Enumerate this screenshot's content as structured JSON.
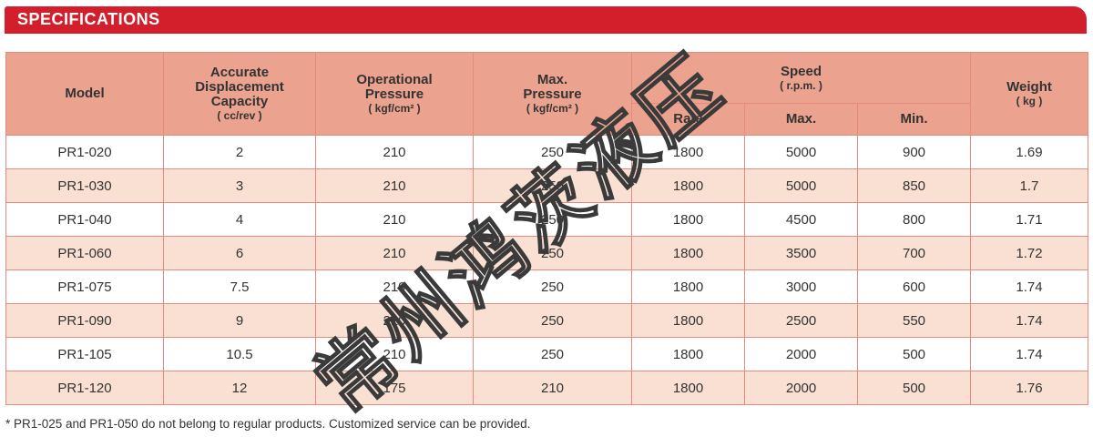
{
  "banner": {
    "title": "SPECIFICATIONS"
  },
  "headers": {
    "model": "Model",
    "capacity": {
      "line1": "Accurate",
      "line2": "Displacement",
      "line3": "Capacity",
      "unit": "( cc/rev )"
    },
    "operational": {
      "line1": "Operational",
      "line2": "Pressure",
      "unit": "( kgf/cm² )"
    },
    "max_pressure": {
      "line1": "Max.",
      "line2": "Pressure",
      "unit": "( kgf/cm² )"
    },
    "speed": {
      "label": "Speed",
      "unit": "( r.p.m. )"
    },
    "rate": "Rate",
    "max": "Max.",
    "min": "Min.",
    "weight": {
      "label": "Weight",
      "unit": "( kg )"
    }
  },
  "rows": [
    {
      "model": "PR1-020",
      "capacity": "2",
      "op": "210",
      "maxp": "250",
      "rate": "1800",
      "max": "5000",
      "min": "900",
      "weight": "1.69"
    },
    {
      "model": "PR1-030",
      "capacity": "3",
      "op": "210",
      "maxp": "250",
      "rate": "1800",
      "max": "5000",
      "min": "850",
      "weight": "1.7"
    },
    {
      "model": "PR1-040",
      "capacity": "4",
      "op": "210",
      "maxp": "250",
      "rate": "1800",
      "max": "4500",
      "min": "800",
      "weight": "1.71"
    },
    {
      "model": "PR1-060",
      "capacity": "6",
      "op": "210",
      "maxp": "250",
      "rate": "1800",
      "max": "3500",
      "min": "700",
      "weight": "1.72"
    },
    {
      "model": "PR1-075",
      "capacity": "7.5",
      "op": "210",
      "maxp": "250",
      "rate": "1800",
      "max": "3000",
      "min": "600",
      "weight": "1.74"
    },
    {
      "model": "PR1-090",
      "capacity": "9",
      "op": "210",
      "maxp": "250",
      "rate": "1800",
      "max": "2500",
      "min": "550",
      "weight": "1.74"
    },
    {
      "model": "PR1-105",
      "capacity": "10.5",
      "op": "210",
      "maxp": "250",
      "rate": "1800",
      "max": "2000",
      "min": "500",
      "weight": "1.74"
    },
    {
      "model": "PR1-120",
      "capacity": "12",
      "op": "175",
      "maxp": "210",
      "rate": "1800",
      "max": "2000",
      "min": "500",
      "weight": "1.76"
    }
  ],
  "footnote": "* PR1-025 and PR1-050 do not belong to regular products. Customized service can be provided.",
  "watermark": {
    "text": "常州鸿茨液压"
  },
  "colors": {
    "banner": "#d21f2b",
    "header": "#eba28f",
    "stripe": "#f9e0d3",
    "border": "#e58a7f"
  }
}
